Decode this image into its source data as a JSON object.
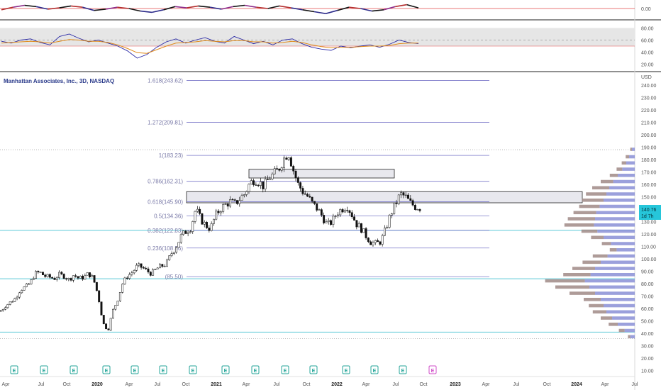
{
  "title": "Manhattan Associates, Inc., 3D, NASDAQ",
  "price_label": "140.76",
  "countdown_label": "1d 7h",
  "currency_label": "USD",
  "earnings_marker": "E",
  "colors": {
    "up": "#26a69a",
    "down": "#ef5350",
    "candle": "#111111",
    "fib_line": "#7b78c9",
    "cyan_line": "#5cc9d6",
    "price_tag": "#26c6da",
    "profile_up": "#8a8fd6",
    "profile_down": "#a08a86",
    "earnings_up": "#26a69a",
    "earnings_future": "#d04dc8"
  },
  "chart_data": [
    {
      "type": "line",
      "panel": "oscillator",
      "yticks": [
        "0.00"
      ],
      "series": [
        {
          "values": [
            -0.2,
            0.2,
            0.5,
            0.3,
            -0.1,
            0.1,
            0.4,
            0.2,
            -0.3,
            -0.1,
            0.2,
            0.0,
            -0.4,
            -0.6,
            -0.2,
            0.3,
            0.1,
            0.4,
            0.2,
            -0.1,
            0.3,
            0.5,
            0.2,
            0.0,
            0.4,
            0.1,
            -0.2,
            -0.5,
            -0.8,
            -0.3,
            0.2,
            0.0,
            -0.4,
            -0.2,
            0.3,
            0.6,
            0.1
          ]
        }
      ]
    },
    {
      "type": "line",
      "panel": "rsi",
      "yticks": [
        "80.00",
        "60.00",
        "40.00",
        "20.00"
      ],
      "ylim": [
        10,
        90
      ],
      "series": [
        {
          "values": [
            58,
            55,
            60,
            62,
            56,
            52,
            66,
            70,
            63,
            57,
            60,
            55,
            50,
            42,
            30,
            36,
            48,
            57,
            62,
            55,
            60,
            64,
            58,
            55,
            66,
            60,
            54,
            58,
            52,
            60,
            62,
            54,
            48,
            45,
            43,
            50,
            47,
            50,
            52,
            48,
            53,
            60,
            56,
            54
          ]
        },
        {
          "values": [
            55,
            56,
            57,
            58,
            57,
            55,
            58,
            61,
            60,
            58,
            58,
            56,
            52,
            46,
            39,
            38,
            44,
            50,
            55,
            56,
            57,
            59,
            58,
            57,
            59,
            59,
            57,
            57,
            55,
            56,
            58,
            56,
            52,
            49,
            47,
            48,
            48,
            49,
            50,
            50,
            51,
            54,
            55,
            55
          ]
        }
      ]
    },
    {
      "type": "candlestick",
      "panel": "price",
      "ylim": [
        5,
        245
      ],
      "yticks": [
        "240.00",
        "230.00",
        "220.00",
        "210.00",
        "200.00",
        "190.00",
        "180.00",
        "170.00",
        "160.00",
        "150.00",
        "140.00",
        "130.00",
        "120.00",
        "110.00",
        "100.00",
        "90.00",
        "80.00",
        "70.00",
        "60.00",
        "50.00",
        "40.00",
        "30.00",
        "20.00",
        "10.00"
      ],
      "xticks": [
        "Apr",
        "Jul",
        "Oct",
        "2020",
        "Apr",
        "Jul",
        "Oct",
        "2021",
        "Apr",
        "Jul",
        "Oct",
        "2022",
        "Apr",
        "Jul",
        "Oct",
        "2023",
        "Apr",
        "Jul",
        "Oct",
        "2024",
        "Apr",
        "Jul"
      ],
      "close_path": [
        58,
        62,
        65,
        68,
        75,
        77,
        80,
        88,
        89,
        86,
        85,
        84,
        87,
        86,
        83,
        87,
        84,
        85,
        88,
        84,
        70,
        48,
        42,
        58,
        67,
        80,
        86,
        89,
        94,
        93,
        90,
        88,
        92,
        94,
        96,
        104,
        110,
        118,
        122,
        125,
        140,
        132,
        127,
        124,
        134,
        140,
        143,
        146,
        144,
        148,
        152,
        160,
        164,
        162,
        158,
        165,
        168,
        172,
        180,
        186,
        172,
        160,
        154,
        150,
        144,
        140,
        134,
        127,
        130,
        137,
        140,
        143,
        136,
        128,
        124,
        118,
        113,
        112,
        114,
        124,
        136,
        144,
        152,
        150,
        145,
        142,
        141
      ],
      "fibonacci": [
        {
          "label": "1.618(243.62)",
          "value": 243.62
        },
        {
          "label": "1.272(209.81)",
          "value": 209.81
        },
        {
          "label": "1(183.23)",
          "value": 183.23
        },
        {
          "label": "0.786(162.31)",
          "value": 162.31
        },
        {
          "label": "0.618(145.90)",
          "value": 145.9
        },
        {
          "label": "0.5(134.36)",
          "value": 134.36
        },
        {
          "label": "0.382(122.83)",
          "value": 122.83
        },
        {
          "label": "0.236(108.56)",
          "value": 108.56
        },
        {
          "label": "(85.50)",
          "value": 85.5
        }
      ],
      "zones": [
        {
          "low": 165,
          "high": 172
        },
        {
          "low": 145,
          "high": 154
        }
      ],
      "horizontal_levels": [
        122.8,
        83.8,
        40.8
      ],
      "dotted_levels": [
        187.8,
        35.6
      ],
      "volume_profile": [
        {
          "price": 188,
          "up": 5,
          "down": 3
        },
        {
          "price": 182,
          "up": 10,
          "down": 6
        },
        {
          "price": 177,
          "up": 15,
          "down": 8
        },
        {
          "price": 172,
          "up": 22,
          "down": 10
        },
        {
          "price": 167,
          "up": 30,
          "down": 14
        },
        {
          "price": 162,
          "up": 38,
          "down": 22
        },
        {
          "price": 157,
          "up": 45,
          "down": 30
        },
        {
          "price": 152,
          "up": 50,
          "down": 36
        },
        {
          "price": 147,
          "up": 55,
          "down": 38
        },
        {
          "price": 142,
          "up": 62,
          "down": 36
        },
        {
          "price": 137,
          "up": 68,
          "down": 40
        },
        {
          "price": 132,
          "up": 70,
          "down": 48
        },
        {
          "price": 127,
          "up": 72,
          "down": 52
        },
        {
          "price": 122,
          "up": 66,
          "down": 28
        },
        {
          "price": 117,
          "up": 55,
          "down": 22
        },
        {
          "price": 112,
          "up": 42,
          "down": 16
        },
        {
          "price": 107,
          "up": 32,
          "down": 12
        },
        {
          "price": 102,
          "up": 48,
          "down": 26
        },
        {
          "price": 97,
          "up": 60,
          "down": 32
        },
        {
          "price": 92,
          "up": 70,
          "down": 40
        },
        {
          "price": 87,
          "up": 78,
          "down": 48
        },
        {
          "price": 82,
          "up": 88,
          "down": 70
        },
        {
          "price": 77,
          "up": 80,
          "down": 60
        },
        {
          "price": 72,
          "up": 70,
          "down": 45
        },
        {
          "price": 67,
          "up": 60,
          "down": 30
        },
        {
          "price": 62,
          "up": 55,
          "down": 26
        },
        {
          "price": 57,
          "up": 50,
          "down": 24
        },
        {
          "price": 52,
          "up": 40,
          "down": 20
        },
        {
          "price": 47,
          "up": 30,
          "down": 16
        },
        {
          "price": 42,
          "up": 18,
          "down": 10
        },
        {
          "price": 37,
          "up": 8,
          "down": 4
        }
      ],
      "earnings_count": 14,
      "earnings_future_count": 1
    }
  ]
}
